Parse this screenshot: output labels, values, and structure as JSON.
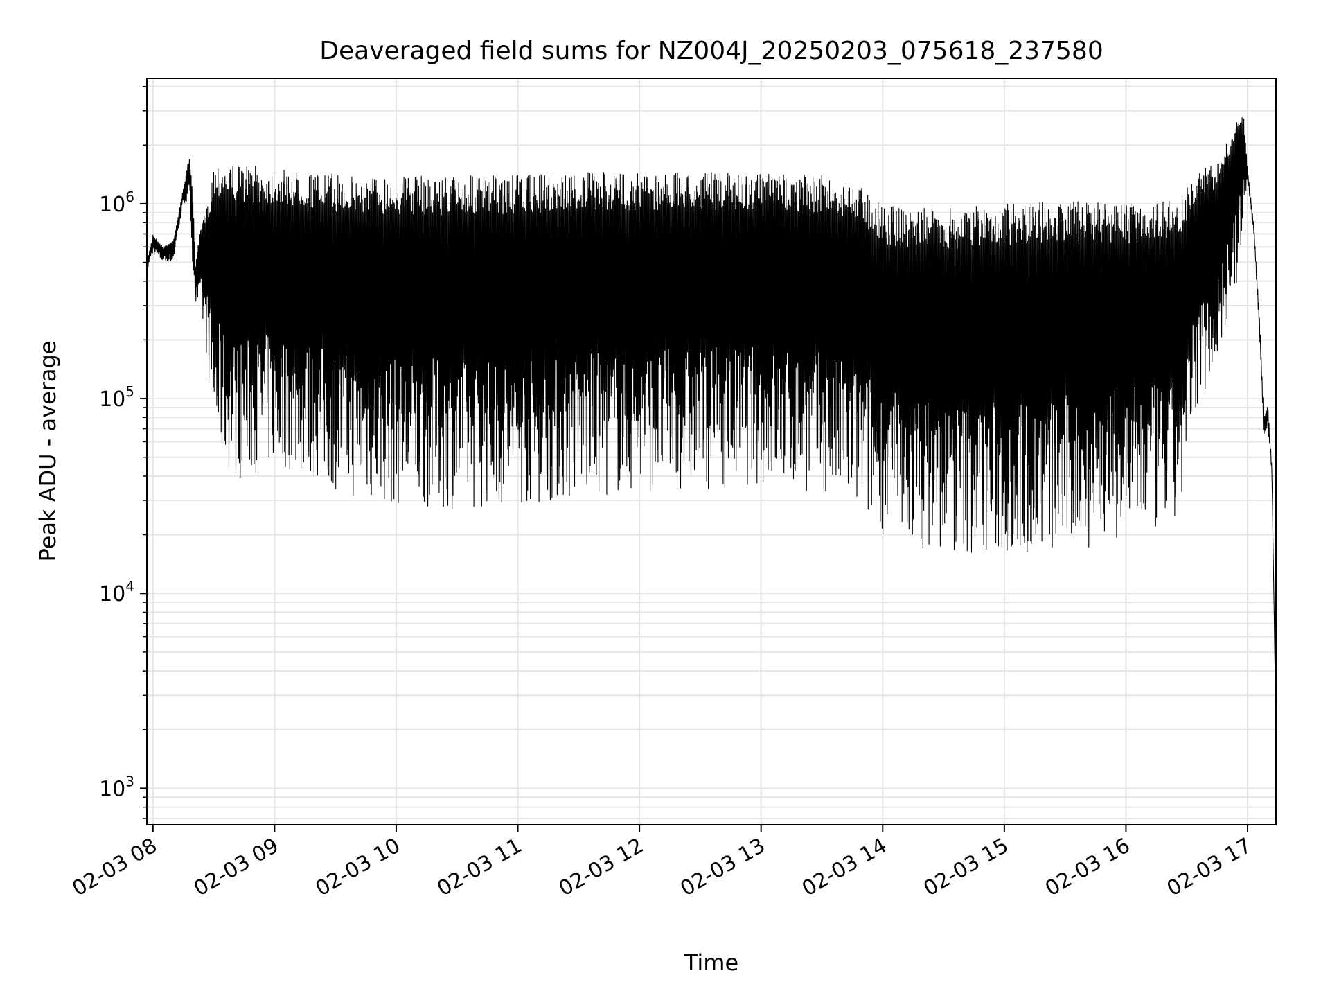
{
  "chart_data": {
    "type": "line",
    "title": "Deaveraged field sums for NZ004J_20250203_075618_237580",
    "xlabel": "Time",
    "ylabel": "Peak ADU - average",
    "yscale": "log",
    "ylim": [
      650,
      4400000
    ],
    "xlim": [
      "2025-02-03 07:57",
      "2025-02-03 17:14"
    ],
    "grid": true,
    "line_color": "#000000",
    "grid_color": "#e5e5e5",
    "x_tick_labels": [
      "02-03 08",
      "02-03 09",
      "02-03 10",
      "02-03 11",
      "02-03 12",
      "02-03 13",
      "02-03 14",
      "02-03 15",
      "02-03 16",
      "02-03 17"
    ],
    "x_tick_values": [
      "2025-02-03 08:00",
      "2025-02-03 09:00",
      "2025-02-03 10:00",
      "2025-02-03 11:00",
      "2025-02-03 12:00",
      "2025-02-03 13:00",
      "2025-02-03 14:00",
      "2025-02-03 15:00",
      "2025-02-03 16:00",
      "2025-02-03 17:00"
    ],
    "y_ticks": [
      {
        "value": 1000,
        "base": "10",
        "exp": "3"
      },
      {
        "value": 10000,
        "base": "10",
        "exp": "4"
      },
      {
        "value": 100000,
        "base": "10",
        "exp": "5"
      },
      {
        "value": 1000000,
        "base": "10",
        "exp": "6"
      }
    ],
    "series": [
      {
        "x": [
          "2025-02-03 07:57",
          "2025-02-03 08:00",
          "2025-02-03 08:05",
          "2025-02-03 08:10",
          "2025-02-03 08:15",
          "2025-02-03 08:18",
          "2025-02-03 08:20",
          "2025-02-03 08:21",
          "2025-02-03 08:24",
          "2025-02-03 08:27",
          "2025-02-03 08:30",
          "2025-02-03 08:35",
          "2025-02-03 08:40",
          "2025-02-03 08:45",
          "2025-02-03 08:52",
          "2025-02-03 09:00",
          "2025-02-03 09:20",
          "2025-02-03 09:40",
          "2025-02-03 10:00",
          "2025-02-03 10:30",
          "2025-02-03 11:00",
          "2025-02-03 11:30",
          "2025-02-03 12:00",
          "2025-02-03 12:30",
          "2025-02-03 13:00",
          "2025-02-03 13:30",
          "2025-02-03 13:50",
          "2025-02-03 14:00",
          "2025-02-03 14:10",
          "2025-02-03 14:30",
          "2025-02-03 15:00",
          "2025-02-03 15:30",
          "2025-02-03 16:00",
          "2025-02-03 16:15",
          "2025-02-03 16:25",
          "2025-02-03 16:30",
          "2025-02-03 16:35",
          "2025-02-03 16:45",
          "2025-02-03 16:55",
          "2025-02-03 16:58",
          "2025-02-03 17:00",
          "2025-02-03 17:03",
          "2025-02-03 17:06",
          "2025-02-03 17:08",
          "2025-02-03 17:10",
          "2025-02-03 17:12",
          "2025-02-03 17:14"
        ],
        "y_peak": [
          500000,
          700000,
          600000,
          650000,
          1200000,
          1800000,
          1000000,
          500000,
          800000,
          1000000,
          1600000,
          1700000,
          1600000,
          1600000,
          1550000,
          1500000,
          1450000,
          1400000,
          1400000,
          1400000,
          1400000,
          1450000,
          1450000,
          1450000,
          1450000,
          1400000,
          1250000,
          1000000,
          950000,
          950000,
          1000000,
          1050000,
          1000000,
          1050000,
          1050000,
          1200000,
          1500000,
          1600000,
          2700000,
          2900000,
          1500000,
          800000,
          250000,
          80000,
          95000,
          45000,
          2000
        ],
        "y_trough": [
          450000,
          550000,
          500000,
          500000,
          1000000,
          1000000,
          400000,
          300000,
          250000,
          150000,
          60000,
          45000,
          40000,
          38000,
          42000,
          45000,
          38000,
          30000,
          28000,
          27000,
          28000,
          30000,
          33000,
          34000,
          36000,
          32000,
          25000,
          20000,
          18000,
          16000,
          15000,
          16000,
          19000,
          20000,
          22000,
          35000,
          90000,
          150000,
          400000,
          800000,
          1300000,
          700000,
          200000,
          60000,
          70000,
          40000,
          2000
        ]
      }
    ]
  }
}
